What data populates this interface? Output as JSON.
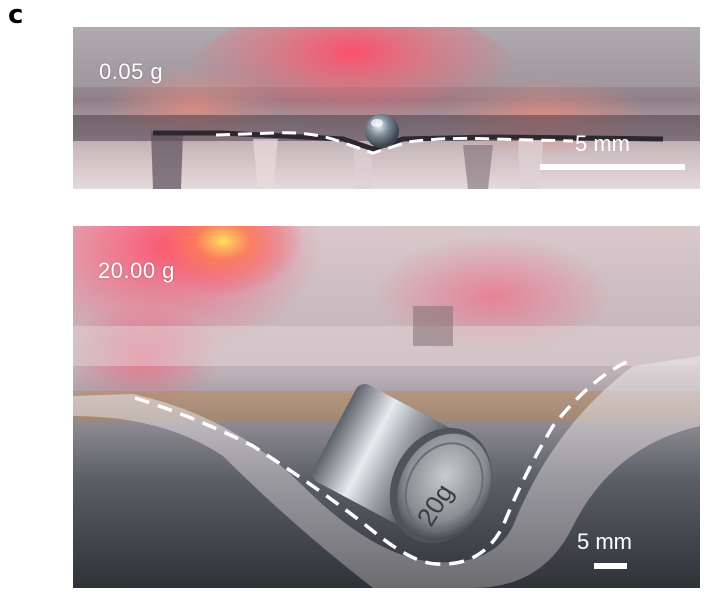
{
  "panel": {
    "letter": "c"
  },
  "top_image": {
    "mass_label": "0.05 g",
    "scale_label": "5 mm"
  },
  "bottom_image": {
    "mass_label": "20.00 g",
    "scale_label": "5 mm",
    "weight_engraving": "20g"
  },
  "colors": {
    "outline": "#ffffff",
    "glow": "#ff4a5a",
    "background": "#ffffff"
  }
}
